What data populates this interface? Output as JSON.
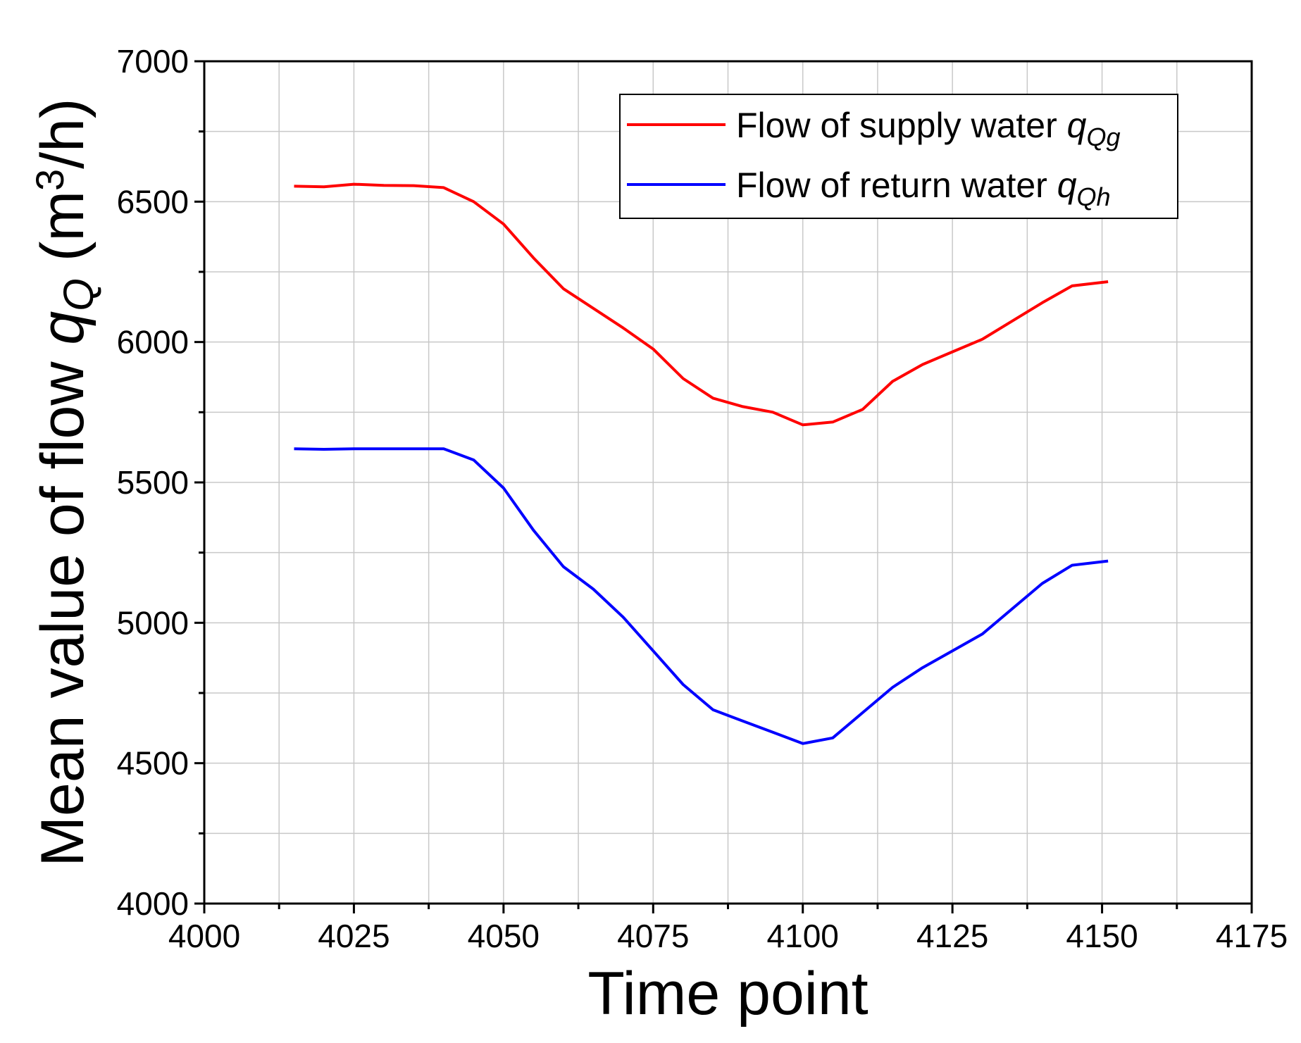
{
  "chart_data": {
    "type": "line",
    "title": "",
    "xlabel": "Time point",
    "ylabel": {
      "prefix": "Mean value of flow ",
      "var": "q",
      "sub": "Q",
      "unit_open": "  (m",
      "unit_sup": "3",
      "unit_close": "/h)"
    },
    "xlim": [
      4000,
      4175
    ],
    "ylim": [
      4000,
      7000
    ],
    "xticks": [
      4000,
      4025,
      4050,
      4075,
      4100,
      4125,
      4150,
      4175
    ],
    "yticks": [
      4000,
      4500,
      5000,
      5500,
      6000,
      6500,
      7000
    ],
    "x_minor_step": 12.5,
    "y_minor_step": 250,
    "grid": true,
    "legend_position": "top-right",
    "series": [
      {
        "name": "Flow of supply water ",
        "name_var": "q",
        "name_sub": "Qg",
        "color": "#ff0000",
        "x": [
          4015,
          4020,
          4025,
          4030,
          4035,
          4040,
          4045,
          4050,
          4055,
          4060,
          4065,
          4070,
          4075,
          4080,
          4085,
          4090,
          4095,
          4100,
          4105,
          4110,
          4115,
          4120,
          4125,
          4130,
          4135,
          4140,
          4145,
          4151
        ],
        "y": [
          6555,
          6553,
          6562,
          6558,
          6557,
          6550,
          6500,
          6420,
          6300,
          6190,
          6120,
          6050,
          5975,
          5870,
          5800,
          5770,
          5750,
          5705,
          5715,
          5760,
          5860,
          5920,
          5965,
          6010,
          6075,
          6140,
          6200,
          6215
        ]
      },
      {
        "name": "Flow of return water ",
        "name_var": "q",
        "name_sub": "Qh",
        "color": "#0000ff",
        "x": [
          4015,
          4020,
          4025,
          4030,
          4035,
          4040,
          4045,
          4050,
          4055,
          4060,
          4065,
          4070,
          4075,
          4080,
          4085,
          4090,
          4095,
          4100,
          4105,
          4110,
          4115,
          4120,
          4125,
          4130,
          4135,
          4140,
          4145,
          4151
        ],
        "y": [
          5620,
          5618,
          5620,
          5620,
          5620,
          5620,
          5580,
          5480,
          5330,
          5200,
          5120,
          5020,
          4900,
          4780,
          4690,
          4650,
          4610,
          4570,
          4590,
          4680,
          4770,
          4840,
          4900,
          4960,
          5050,
          5140,
          5205,
          5220
        ]
      }
    ]
  }
}
